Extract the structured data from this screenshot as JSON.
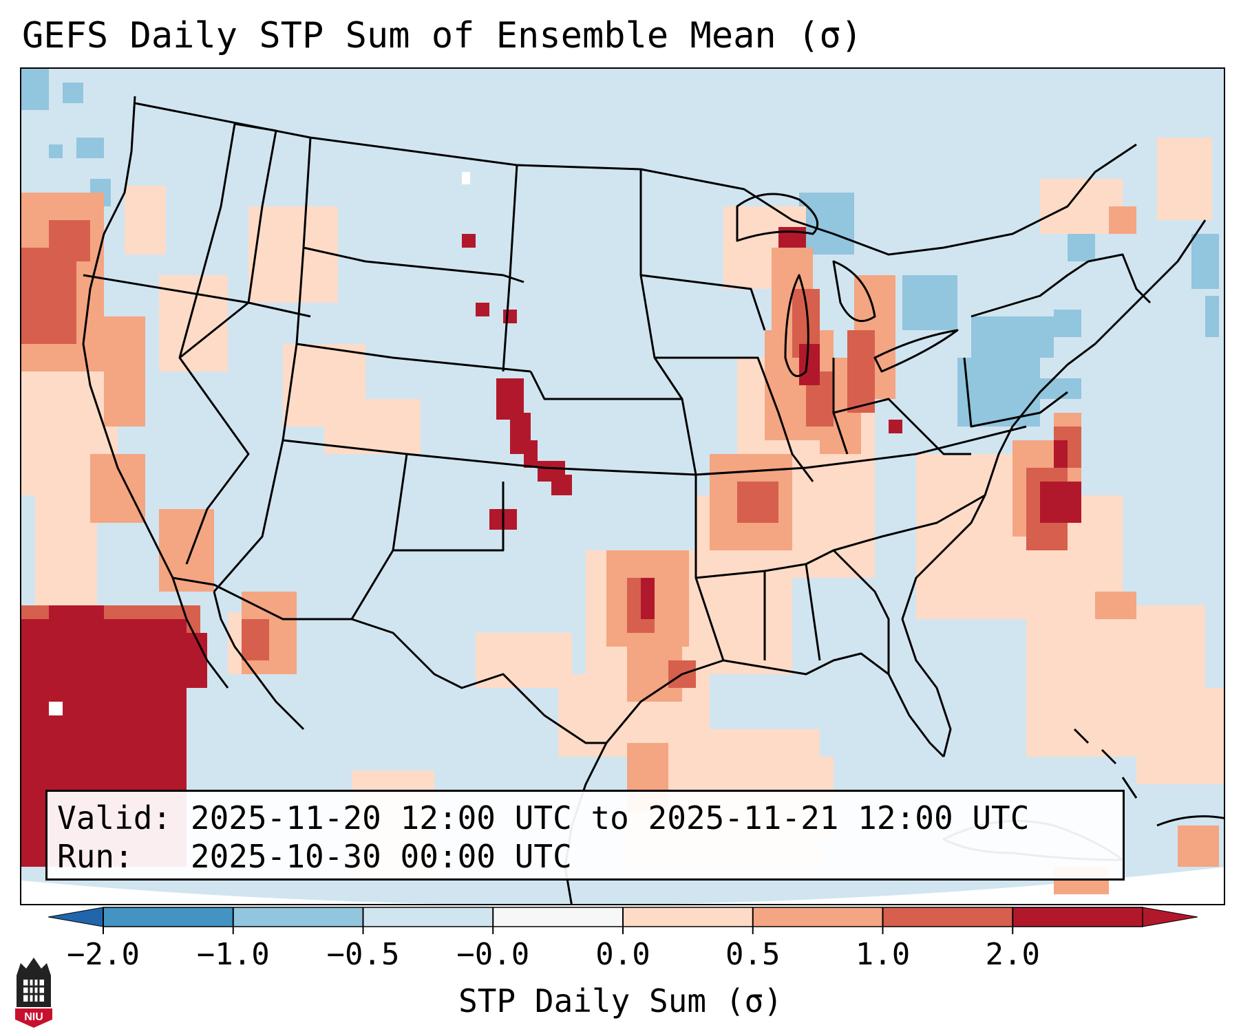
{
  "title": "GEFS Daily STP Sum of Ensemble Mean (σ)",
  "info": {
    "valid_label": "Valid:",
    "valid_value": "2025-11-20 12:00 UTC to 2025-11-21 12:00 UTC",
    "run_label": "Run:",
    "run_value": "2025-10-30 00:00 UTC"
  },
  "colorbar": {
    "label": "STP Daily Sum (σ)",
    "ticks": [
      "−2.0",
      "−1.0",
      "−0.5",
      "−0.0",
      "0.0",
      "0.5",
      "1.0",
      "2.0"
    ],
    "colors": [
      "#4393c3",
      "#92c5de",
      "#d1e5f0",
      "#f7f7f7",
      "#fddbc7",
      "#f4a582",
      "#d6604d",
      "#b2182b"
    ],
    "extend_low_color": "#2166ac",
    "extend_high_color": "#b2182b"
  },
  "logo": {
    "text": "NIU",
    "icon": "university-tower-icon"
  },
  "colors": {
    "background_anomaly": "#d1e5f0",
    "land_border": "#000000"
  }
}
